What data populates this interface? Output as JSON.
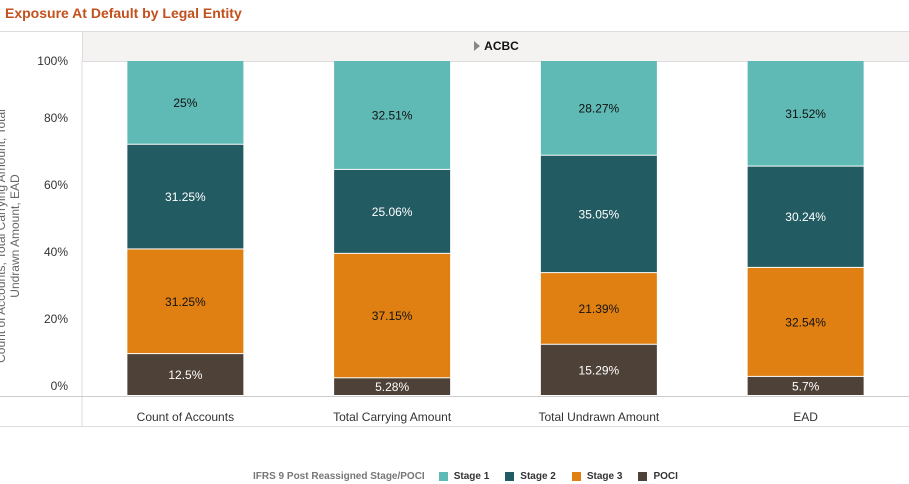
{
  "title": "Exposure At Default by Legal Entity",
  "chart_data": {
    "type": "bar",
    "stacked": "percent",
    "group_header": "ACBC",
    "categories": [
      "Count of Accounts",
      "Total Carrying Amount",
      "Total Undrawn Amount",
      "EAD"
    ],
    "ylabel": "Count of Accounts, Total Carrying Amount, Total Undrawn Amount, EAD",
    "yticks": [
      "0%",
      "20%",
      "40%",
      "60%",
      "80%",
      "100%"
    ],
    "ylim": [
      0,
      100
    ],
    "legend_title": "IFRS 9 Post Reassigned Stage/POCI",
    "legend_position": "bottom",
    "series": [
      {
        "name": "POCI",
        "color": "#4E4137",
        "text_color": "#ffffff",
        "values": [
          12.5,
          5.28,
          15.29,
          5.7
        ],
        "labels": [
          "12.5%",
          "5.28%",
          "15.29%",
          "5.7%"
        ]
      },
      {
        "name": "Stage 3",
        "color": "#E08012",
        "text_color": "#111111",
        "values": [
          31.25,
          37.15,
          21.39,
          32.54
        ],
        "labels": [
          "31.25%",
          "37.15%",
          "21.39%",
          "32.54%"
        ]
      },
      {
        "name": "Stage 2",
        "color": "#235B63",
        "text_color": "#ffffff",
        "values": [
          31.25,
          25.06,
          35.05,
          30.24
        ],
        "labels": [
          "31.25%",
          "25.06%",
          "35.05%",
          "30.24%"
        ]
      },
      {
        "name": "Stage 1",
        "color": "#5FB9B4",
        "text_color": "#111111",
        "values": [
          25,
          32.51,
          28.27,
          31.52
        ],
        "labels": [
          "25%",
          "32.51%",
          "28.27%",
          "31.52%"
        ]
      }
    ],
    "legend_order": [
      "Stage 1",
      "Stage 2",
      "Stage 3",
      "POCI"
    ]
  }
}
